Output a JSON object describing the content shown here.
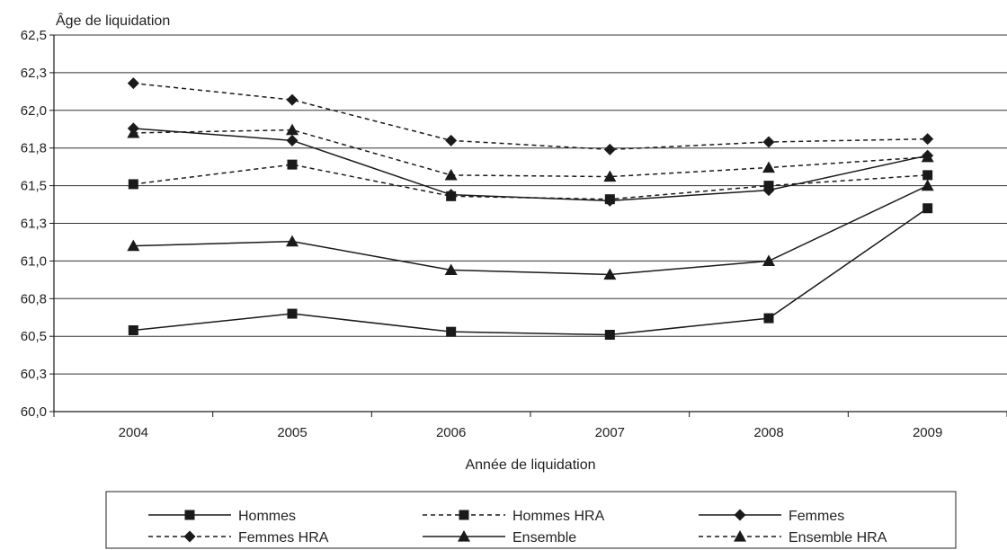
{
  "chart_data": {
    "type": "line",
    "ylabel": "Âge de liquidation",
    "xlabel": "Année de liquidation",
    "x": [
      "2004",
      "2005",
      "2006",
      "2007",
      "2008",
      "2009"
    ],
    "ylim": [
      60.0,
      62.5
    ],
    "yticks": [
      "60,0",
      "60,3",
      "60,5",
      "60,8",
      "61,0",
      "61,3",
      "61,5",
      "61,8",
      "62,0",
      "62,3",
      "62,5"
    ],
    "grid": true,
    "legend_position": "bottom",
    "series": [
      {
        "name": "Hommes",
        "values": [
          60.54,
          60.65,
          60.53,
          60.51,
          60.62,
          61.35
        ],
        "dash": "solid",
        "marker": "square"
      },
      {
        "name": "Hommes HRA",
        "values": [
          61.51,
          61.64,
          61.43,
          61.41,
          61.5,
          61.57
        ],
        "dash": "dashed",
        "marker": "square"
      },
      {
        "name": "Femmes",
        "values": [
          61.88,
          61.8,
          61.44,
          61.4,
          61.47,
          61.7
        ],
        "dash": "solid",
        "marker": "diamond"
      },
      {
        "name": "Femmes HRA",
        "values": [
          62.18,
          62.07,
          61.8,
          61.74,
          61.79,
          61.81
        ],
        "dash": "dashed",
        "marker": "diamond"
      },
      {
        "name": "Ensemble",
        "values": [
          61.1,
          61.13,
          60.94,
          60.91,
          61.0,
          61.5
        ],
        "dash": "solid",
        "marker": "triangle"
      },
      {
        "name": "Ensemble HRA",
        "values": [
          61.85,
          61.87,
          61.57,
          61.56,
          61.62,
          61.69
        ],
        "dash": "dashed",
        "marker": "triangle"
      }
    ],
    "line_color": "#1a1a1a",
    "grid_color": "#333333"
  }
}
